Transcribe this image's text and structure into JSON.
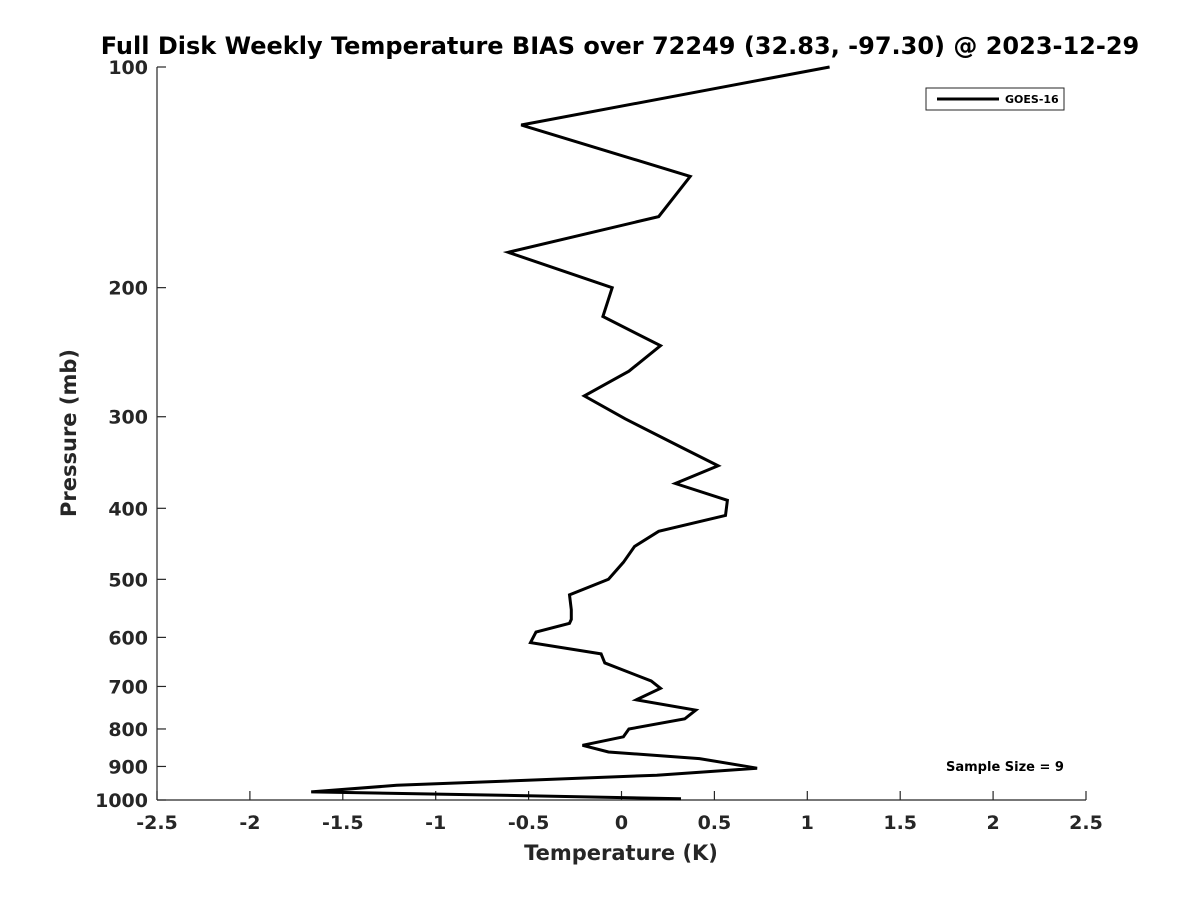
{
  "chart_data": {
    "type": "line",
    "title": "Full Disk Weekly Temperature BIAS over 72249 (32.83, -97.30) @ 2023-12-29",
    "xlabel": "Temperature (K)",
    "ylabel": "Pressure (mb)",
    "xlim": [
      -2.5,
      2.5
    ],
    "ylim": [
      100,
      1000
    ],
    "y_scale": "log",
    "y_reversed": true,
    "grid": false,
    "x_ticks": [
      -2.5,
      -2,
      -1.5,
      -1,
      -0.5,
      0,
      0.5,
      1,
      1.5,
      2,
      2.5
    ],
    "x_tick_labels": [
      "-2.5",
      "-2",
      "-1.5",
      "-1",
      "-0.5",
      "0",
      "0.5",
      "1",
      "1.5",
      "2",
      "2.5"
    ],
    "y_ticks": [
      100,
      200,
      300,
      400,
      500,
      600,
      700,
      800,
      900,
      1000
    ],
    "y_tick_labels": [
      "100",
      "200",
      "300",
      "400",
      "500",
      "600",
      "700",
      "800",
      "900",
      "1000"
    ],
    "legend": {
      "position": "top-right",
      "entries": [
        "GOES-16"
      ]
    },
    "annotation": "Sample Size = 9",
    "series": [
      {
        "name": "GOES-16",
        "color": "#000000",
        "points": [
          [
            1.12,
            100
          ],
          [
            -0.54,
            120
          ],
          [
            0.37,
            141
          ],
          [
            0.2,
            160
          ],
          [
            -0.61,
            179
          ],
          [
            -0.05,
            200
          ],
          [
            -0.1,
            219
          ],
          [
            0.21,
            240
          ],
          [
            0.04,
            260
          ],
          [
            -0.2,
            281
          ],
          [
            0.02,
            302
          ],
          [
            0.32,
            330
          ],
          [
            0.52,
            350
          ],
          [
            0.29,
            370
          ],
          [
            0.57,
            390
          ],
          [
            0.56,
            409
          ],
          [
            0.2,
            430
          ],
          [
            0.07,
            451
          ],
          [
            0.01,
            474
          ],
          [
            -0.07,
            500
          ],
          [
            -0.28,
            525
          ],
          [
            -0.27,
            550
          ],
          [
            -0.27,
            567
          ],
          [
            -0.28,
            574
          ],
          [
            -0.46,
            590
          ],
          [
            -0.49,
            610
          ],
          [
            -0.11,
            632
          ],
          [
            -0.09,
            650
          ],
          [
            0.16,
            688
          ],
          [
            0.21,
            704
          ],
          [
            0.08,
            730
          ],
          [
            0.4,
            754
          ],
          [
            0.34,
            775
          ],
          [
            0.04,
            800
          ],
          [
            0.01,
            820
          ],
          [
            -0.21,
            842
          ],
          [
            -0.07,
            860
          ],
          [
            0.42,
            878
          ],
          [
            0.73,
            905
          ],
          [
            0.19,
            925
          ],
          [
            -1.21,
            955
          ],
          [
            -1.67,
            975
          ],
          [
            -0.95,
            982
          ],
          [
            0.32,
            996
          ]
        ]
      }
    ]
  }
}
